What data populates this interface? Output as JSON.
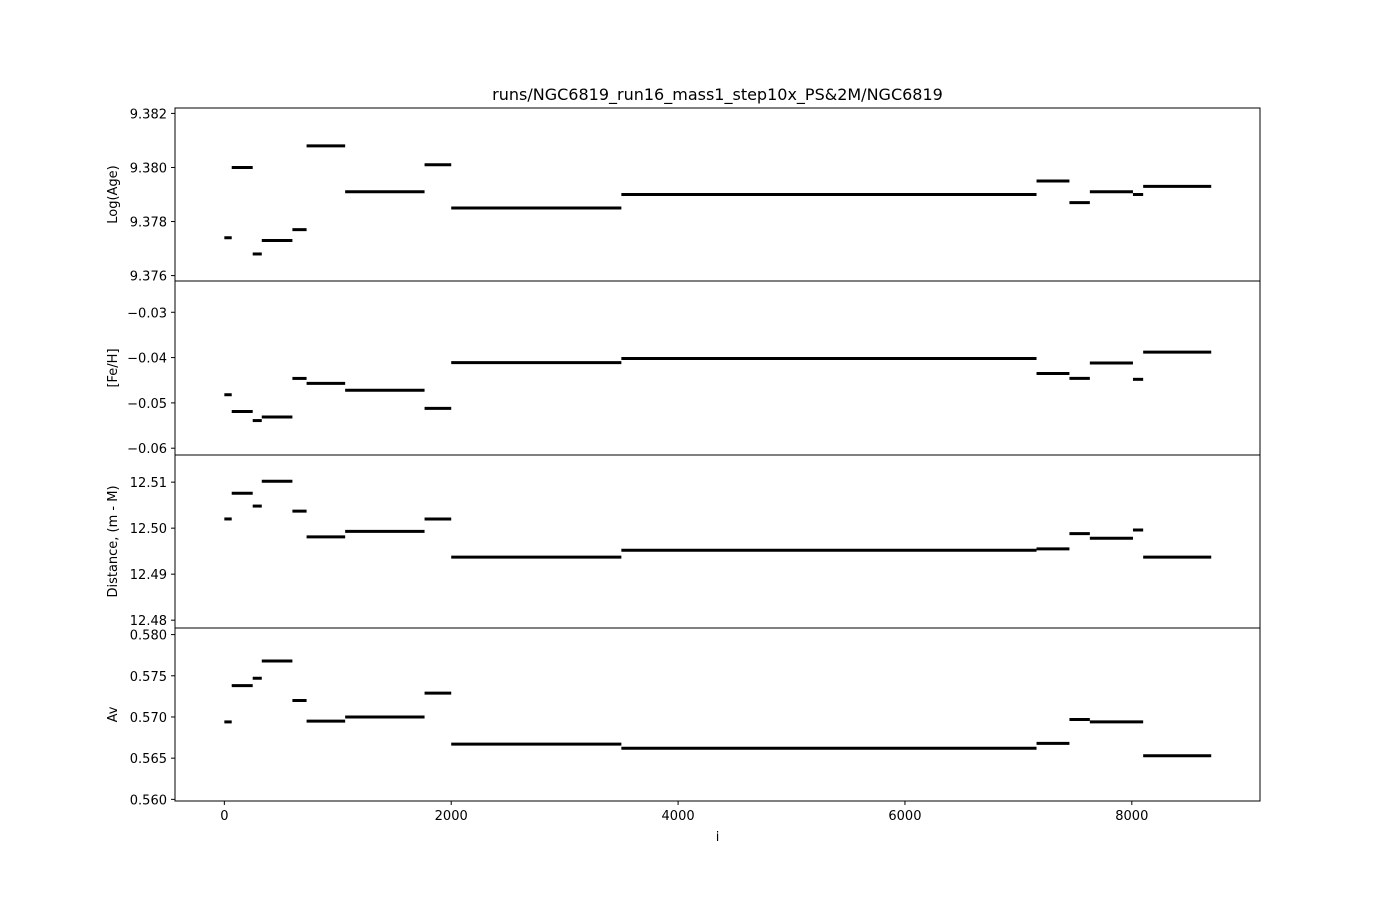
{
  "chart_data": {
    "type": "line",
    "title": "runs/NGC6819_run16_mass1_step10x_PS&2M/NGC6819",
    "xlabel": "i",
    "xlim": [
      -435,
      9130
    ],
    "xticks": [
      0,
      2000,
      4000,
      6000,
      8000
    ],
    "xtick_labels": [
      "0",
      "2000",
      "4000",
      "6000",
      "8000"
    ],
    "grid": false,
    "panels": [
      {
        "ylabel": "Log(Age)",
        "ylim": [
          9.3758,
          9.3822
        ],
        "yticks": [
          9.376,
          9.378,
          9.38,
          9.382
        ],
        "ytick_labels": [
          "9.376",
          "9.378",
          "9.380",
          "9.382"
        ],
        "segments": [
          {
            "x": [
              0,
              65
            ],
            "y": 9.3774
          },
          {
            "x": [
              65,
              250
            ],
            "y": 9.38
          },
          {
            "x": [
              250,
              330
            ],
            "y": 9.3768
          },
          {
            "x": [
              330,
              600
            ],
            "y": 9.3773
          },
          {
            "x": [
              600,
              725
            ],
            "y": 9.3777
          },
          {
            "x": [
              725,
              1065
            ],
            "y": 9.3808
          },
          {
            "x": [
              1065,
              1765
            ],
            "y": 9.3791
          },
          {
            "x": [
              1765,
              2000
            ],
            "y": 9.3801
          },
          {
            "x": [
              2000,
              3500
            ],
            "y": 9.3785
          },
          {
            "x": [
              3500,
              7160
            ],
            "y": 9.379
          },
          {
            "x": [
              7160,
              7450
            ],
            "y": 9.3795
          },
          {
            "x": [
              7450,
              7630
            ],
            "y": 9.3787
          },
          {
            "x": [
              7630,
              8010
            ],
            "y": 9.3791
          },
          {
            "x": [
              8010,
              8100
            ],
            "y": 9.379
          },
          {
            "x": [
              8100,
              8700
            ],
            "y": 9.3793
          }
        ]
      },
      {
        "ylabel": "[Fe/H]",
        "ylim": [
          -0.0615,
          -0.0231
        ],
        "yticks": [
          -0.06,
          -0.05,
          -0.04,
          -0.03
        ],
        "ytick_labels": [
          "−0.06",
          "−0.05",
          "−0.04",
          "−0.03"
        ],
        "segments": [
          {
            "x": [
              0,
              65
            ],
            "y": -0.0482
          },
          {
            "x": [
              65,
              250
            ],
            "y": -0.0519
          },
          {
            "x": [
              250,
              330
            ],
            "y": -0.0539
          },
          {
            "x": [
              330,
              600
            ],
            "y": -0.0531
          },
          {
            "x": [
              600,
              725
            ],
            "y": -0.0446
          },
          {
            "x": [
              725,
              1065
            ],
            "y": -0.0457
          },
          {
            "x": [
              1065,
              1765
            ],
            "y": -0.0472
          },
          {
            "x": [
              1765,
              2000
            ],
            "y": -0.0512
          },
          {
            "x": [
              2000,
              3500
            ],
            "y": -0.0411
          },
          {
            "x": [
              3500,
              7160
            ],
            "y": -0.0402
          },
          {
            "x": [
              7160,
              7450
            ],
            "y": -0.0435
          },
          {
            "x": [
              7450,
              7630
            ],
            "y": -0.0446
          },
          {
            "x": [
              7630,
              8010
            ],
            "y": -0.0412
          },
          {
            "x": [
              8010,
              8100
            ],
            "y": -0.0448
          },
          {
            "x": [
              8100,
              8700
            ],
            "y": -0.0388
          }
        ]
      },
      {
        "ylabel": "Distance, (m - M)",
        "ylim": [
          12.4783,
          12.5159
        ],
        "yticks": [
          12.48,
          12.49,
          12.5,
          12.51
        ],
        "ytick_labels": [
          "12.48",
          "12.49",
          "12.50",
          "12.51"
        ],
        "segments": [
          {
            "x": [
              0,
              65
            ],
            "y": 12.502
          },
          {
            "x": [
              65,
              250
            ],
            "y": 12.5076
          },
          {
            "x": [
              250,
              330
            ],
            "y": 12.5048
          },
          {
            "x": [
              330,
              600
            ],
            "y": 12.5102
          },
          {
            "x": [
              600,
              725
            ],
            "y": 12.5037
          },
          {
            "x": [
              725,
              1065
            ],
            "y": 12.4981
          },
          {
            "x": [
              1065,
              1765
            ],
            "y": 12.4993
          },
          {
            "x": [
              1765,
              2000
            ],
            "y": 12.502
          },
          {
            "x": [
              2000,
              3500
            ],
            "y": 12.4937
          },
          {
            "x": [
              3500,
              7160
            ],
            "y": 12.4952
          },
          {
            "x": [
              7160,
              7450
            ],
            "y": 12.4955
          },
          {
            "x": [
              7450,
              7630
            ],
            "y": 12.4988
          },
          {
            "x": [
              7630,
              8010
            ],
            "y": 12.4978
          },
          {
            "x": [
              8010,
              8100
            ],
            "y": 12.4996
          },
          {
            "x": [
              8100,
              8700
            ],
            "y": 12.4937
          }
        ]
      },
      {
        "ylabel": "Av",
        "ylim": [
          0.5598,
          0.5808
        ],
        "yticks": [
          0.56,
          0.565,
          0.57,
          0.575,
          0.58
        ],
        "ytick_labels": [
          "0.560",
          "0.565",
          "0.570",
          "0.575",
          "0.580"
        ],
        "segments": [
          {
            "x": [
              0,
              65
            ],
            "y": 0.5694
          },
          {
            "x": [
              65,
              250
            ],
            "y": 0.5738
          },
          {
            "x": [
              250,
              330
            ],
            "y": 0.5747
          },
          {
            "x": [
              330,
              600
            ],
            "y": 0.5768
          },
          {
            "x": [
              600,
              725
            ],
            "y": 0.572
          },
          {
            "x": [
              725,
              1065
            ],
            "y": 0.5695
          },
          {
            "x": [
              1065,
              1765
            ],
            "y": 0.57
          },
          {
            "x": [
              1765,
              2000
            ],
            "y": 0.5729
          },
          {
            "x": [
              2000,
              3500
            ],
            "y": 0.5667
          },
          {
            "x": [
              3500,
              7160
            ],
            "y": 0.5662
          },
          {
            "x": [
              7160,
              7450
            ],
            "y": 0.5668
          },
          {
            "x": [
              7450,
              7630
            ],
            "y": 0.5697
          },
          {
            "x": [
              7630,
              8100
            ],
            "y": 0.5694
          },
          {
            "x": [
              8100,
              8700
            ],
            "y": 0.5653
          }
        ]
      }
    ]
  }
}
